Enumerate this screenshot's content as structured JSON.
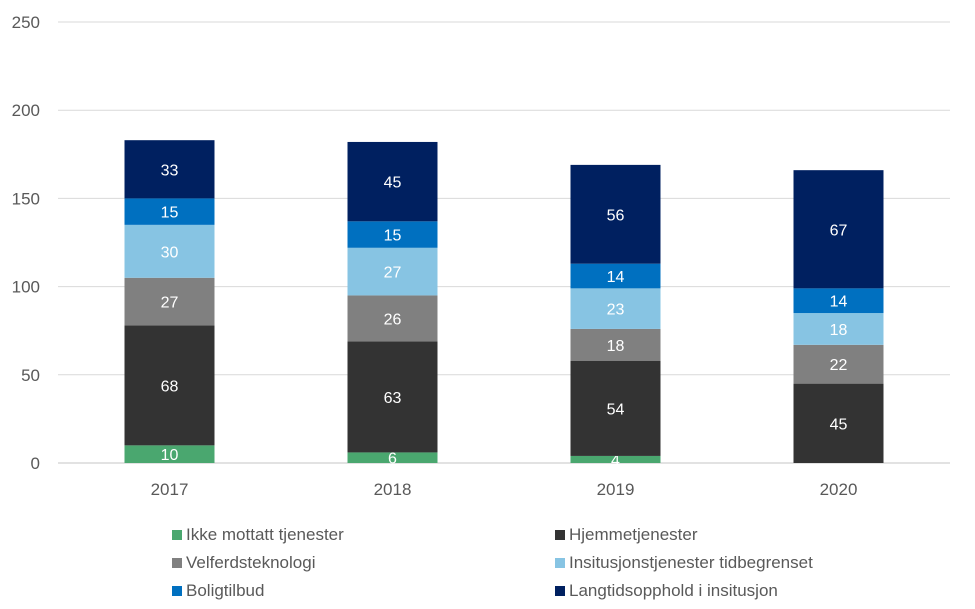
{
  "chart_data": {
    "type": "bar",
    "stacked": true,
    "categories": [
      "2017",
      "2018",
      "2019",
      "2020"
    ],
    "ylim": [
      0,
      250
    ],
    "yticks": [
      0,
      50,
      100,
      150,
      200,
      250
    ],
    "grid": true,
    "legend_position": "bottom",
    "series": [
      {
        "name": "Ikke mottatt tjenester",
        "color": "#4aa76f",
        "values": [
          10,
          6,
          4,
          0
        ]
      },
      {
        "name": "Hjemmetjenester",
        "color": "#333333",
        "values": [
          68,
          63,
          54,
          45
        ]
      },
      {
        "name": "Velferdsteknologi",
        "color": "#808080",
        "values": [
          27,
          26,
          18,
          22
        ]
      },
      {
        "name": "Insitusjonstjenester tidbegrenset",
        "color": "#87c4e3",
        "values": [
          30,
          27,
          23,
          18
        ]
      },
      {
        "name": "Boligtilbud",
        "color": "#0070c0",
        "values": [
          15,
          15,
          14,
          14
        ]
      },
      {
        "name": "Langtidsopphold i insitusjon",
        "color": "#002060",
        "values": [
          33,
          45,
          56,
          67
        ]
      }
    ]
  }
}
